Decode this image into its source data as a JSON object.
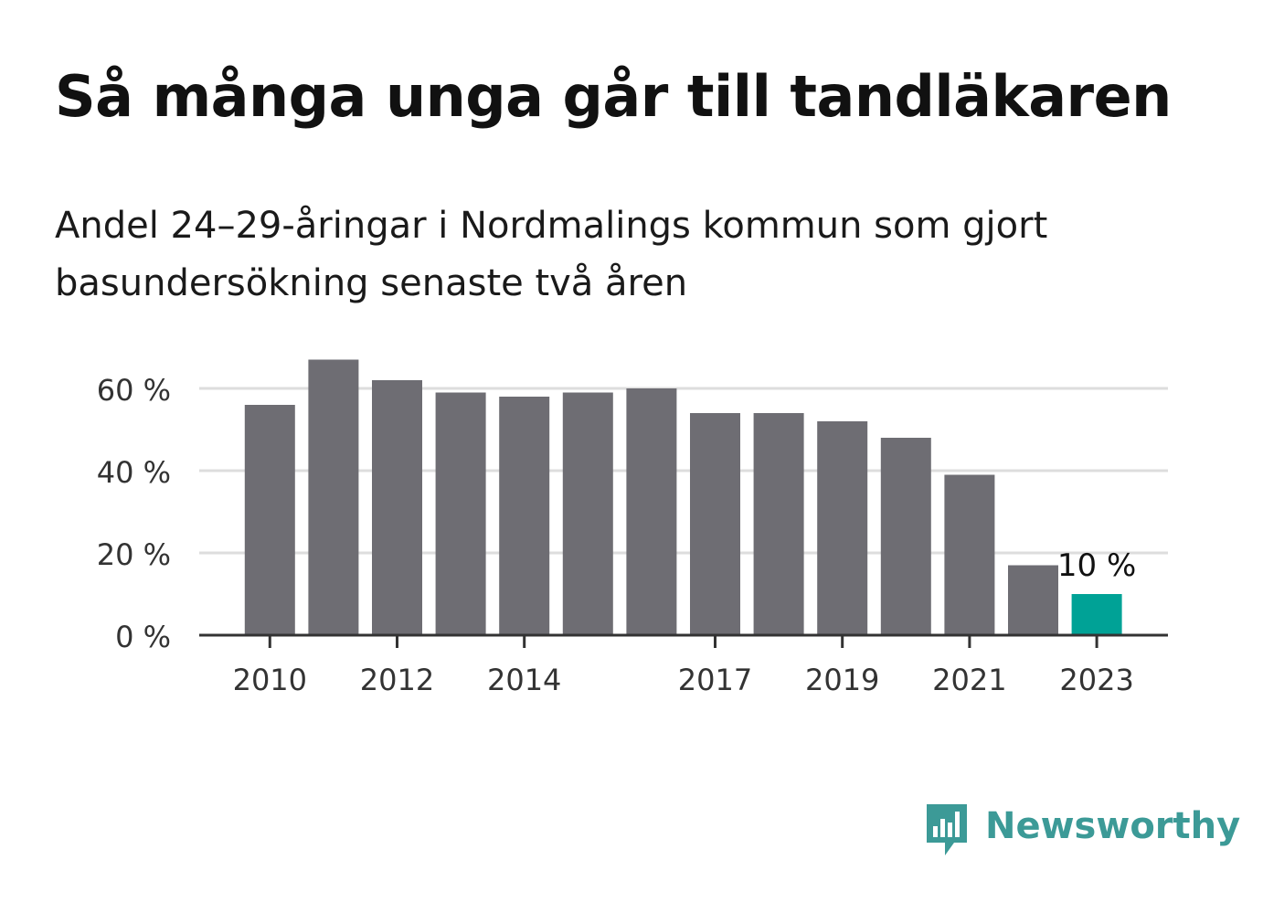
{
  "header": {
    "title": "Så många unga går till tandläkaren",
    "subtitle": "Andel 24–29-åringar i Nordmalings kommun som gjort\nbasundersökning senaste två åren"
  },
  "chart_data": {
    "type": "bar",
    "categories": [
      "2010",
      "2011",
      "2012",
      "2013",
      "2014",
      "2015",
      "2016",
      "2017",
      "2018",
      "2019",
      "2020",
      "2021",
      "2022",
      "2023"
    ],
    "values": [
      56,
      67,
      62,
      59,
      58,
      59,
      60,
      54,
      54,
      52,
      48,
      39,
      17,
      10
    ],
    "x_tick_labels": [
      "2010",
      "2012",
      "2014",
      "2017",
      "2019",
      "2021",
      "2023"
    ],
    "y_ticks": [
      0,
      20,
      40,
      60
    ],
    "y_tick_labels": [
      "0 %",
      "20 %",
      "40 %",
      "60 %"
    ],
    "ylim": [
      0,
      68
    ],
    "grid": true,
    "highlight_index": 13,
    "annotations": [
      {
        "category": "2023",
        "text": "10 %"
      }
    ],
    "colors": {
      "bar": "#6e6d73",
      "highlight": "#00a296",
      "grid": "#dddddd",
      "axis": "#333333",
      "tick_text": "#333333"
    }
  },
  "brand": {
    "name": "Newsworthy",
    "icon": "newsworthy-logo-icon",
    "color": "#3c9a97"
  }
}
